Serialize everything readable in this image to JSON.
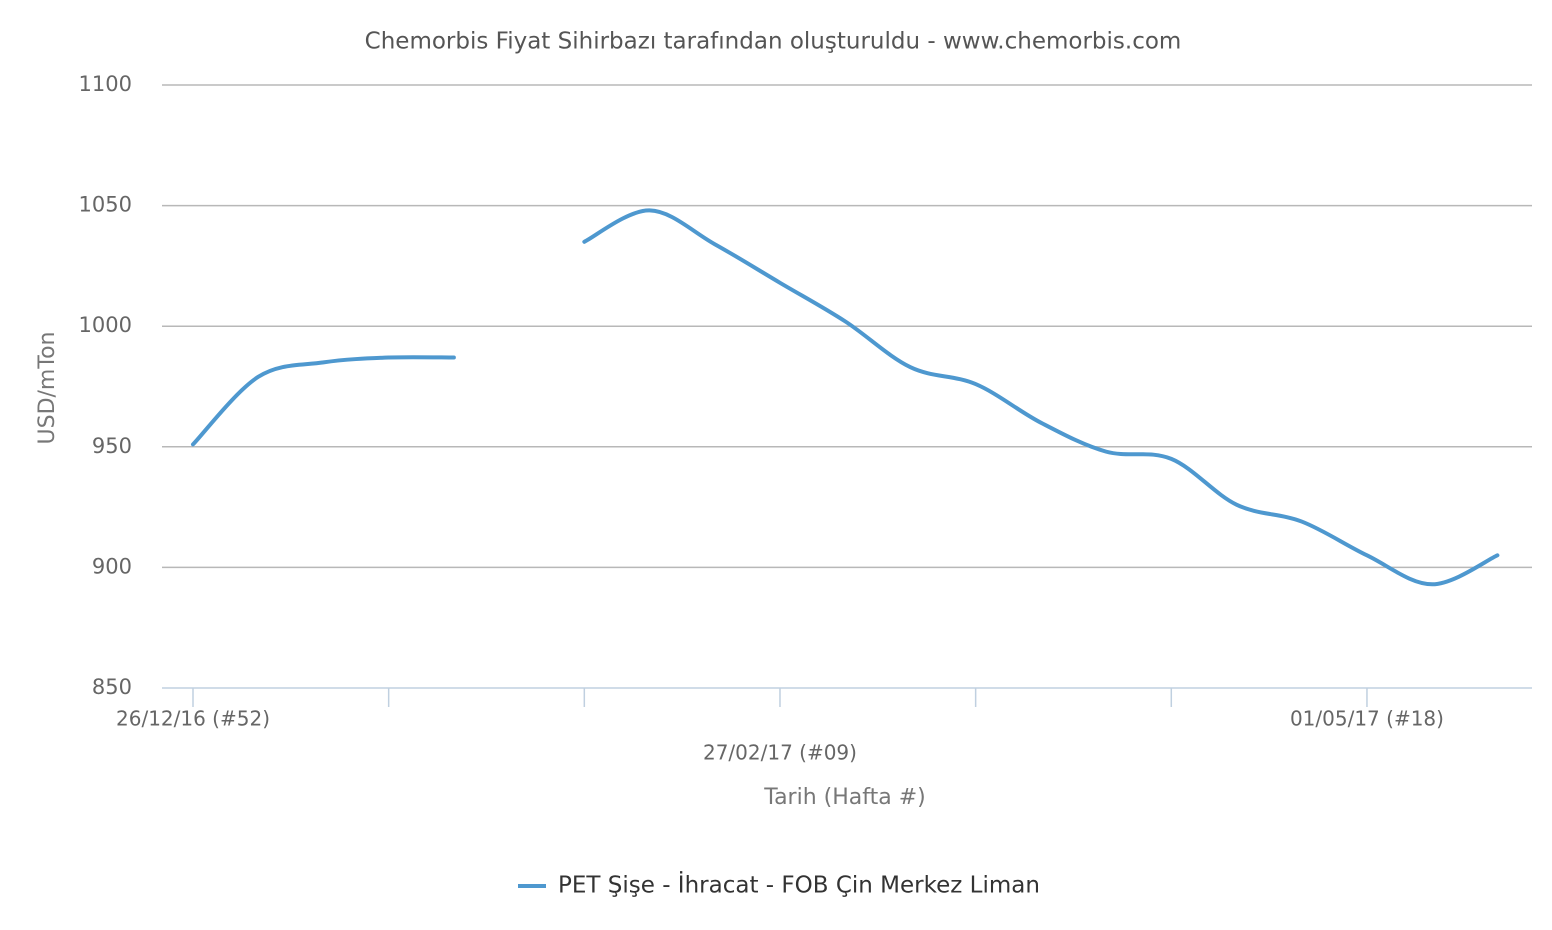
{
  "chart_data": {
    "type": "line",
    "title": "Chemorbis Fiyat Sihirbazı tarafından oluşturuldu - www.chemorbis.com",
    "x_label": "Tarih (Hafta #)",
    "y_label": "USD/mTon",
    "categories": [
      "26/12/16 (#52)",
      null,
      null,
      null,
      null,
      null,
      null,
      null,
      null,
      "27/02/17 (#09)",
      null,
      null,
      null,
      null,
      null,
      null,
      null,
      null,
      "01/05/17 (#18)",
      null,
      null
    ],
    "series": [
      {
        "name": "PET Şişe - İhracat - FOB Çin Merkez Liman",
        "color": "#4e98cf",
        "values": [
          951,
          979,
          985,
          987,
          987,
          null,
          1035,
          1048,
          1034,
          1018,
          1002,
          983,
          976,
          960,
          948,
          945,
          926,
          919,
          905,
          893,
          905
        ]
      }
    ],
    "ylim": [
      850,
      1100
    ],
    "yticks": [
      850,
      900,
      950,
      1000,
      1050,
      1100
    ],
    "grid": true,
    "legend": "bottom"
  }
}
